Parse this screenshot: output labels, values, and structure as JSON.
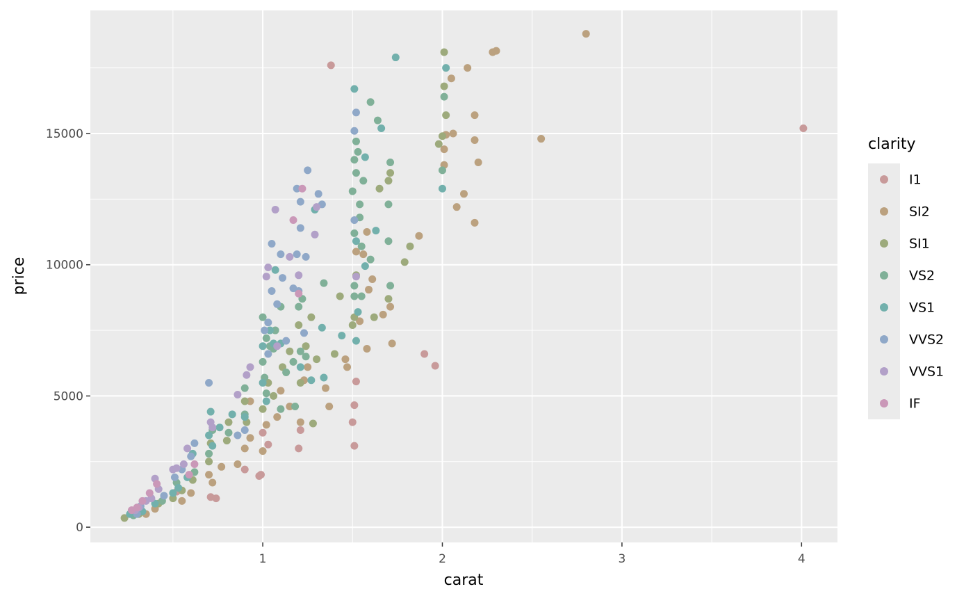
{
  "chart_data": {
    "type": "scatter",
    "x_label": "carat",
    "y_label": "price",
    "legend_title": "clarity",
    "xlim": [
      0.04,
      4.2
    ],
    "ylim": [
      -580,
      19690
    ],
    "xticks": [
      1,
      2,
      3,
      4
    ],
    "yticks": [
      0,
      5000,
      10000,
      15000
    ],
    "x_minor_grid": [
      0.5,
      1.5,
      2.5,
      3.5
    ],
    "y_minor_grid": [
      2500,
      7500,
      12500,
      17500
    ],
    "grid": true,
    "legend": "right",
    "series": [
      {
        "name": "I1",
        "color": "#c89a9a",
        "x": [
          1.38,
          4.01,
          1.96,
          1.9,
          1.51,
          1.5,
          1.51,
          1.2,
          1.21,
          1.03,
          0.99,
          0.98,
          0.9,
          0.74,
          0.71,
          1.0,
          1.52,
          0.52
        ],
        "values": [
          17600,
          15200,
          6150,
          6600,
          4650,
          4000,
          3100,
          3000,
          3700,
          3150,
          2000,
          1950,
          2200,
          1100,
          1150,
          3600,
          5550,
          1350
        ]
      },
      {
        "name": "SI2",
        "color": "#bba17f",
        "x": [
          2.8,
          2.28,
          2.3,
          2.14,
          2.05,
          2.02,
          2.06,
          2.18,
          2.55,
          2.18,
          2.01,
          2.2,
          2.01,
          2.12,
          2.08,
          2.18,
          1.87,
          1.58,
          1.52,
          1.56,
          1.59,
          1.61,
          1.71,
          1.67,
          1.54,
          1.46,
          1.47,
          1.58,
          1.72,
          1.35,
          1.37,
          1.25,
          1.21,
          1.08,
          1.02,
          1.0,
          0.9,
          0.93,
          0.77,
          0.72,
          0.7,
          0.6,
          0.55,
          0.4,
          0.35,
          1.1,
          1.15,
          1.23,
          0.86,
          0.93
        ],
        "values": [
          18800,
          18100,
          18150,
          17500,
          17100,
          14950,
          15000,
          15700,
          14800,
          14750,
          14400,
          13900,
          13800,
          12700,
          12200,
          11600,
          11100,
          11250,
          10500,
          10400,
          9050,
          9450,
          8400,
          8100,
          7850,
          6400,
          6100,
          6800,
          7000,
          5300,
          4600,
          6100,
          4000,
          4200,
          3900,
          2900,
          3000,
          3400,
          2300,
          1700,
          2000,
          1300,
          1000,
          700,
          500,
          5200,
          4600,
          5600,
          2400,
          4800
        ]
      },
      {
        "name": "SI1",
        "color": "#9daa7c",
        "x": [
          2.01,
          2.01,
          2.02,
          2.0,
          1.98,
          1.82,
          1.79,
          1.7,
          1.62,
          1.71,
          1.7,
          1.65,
          1.52,
          1.51,
          1.43,
          1.5,
          1.4,
          1.27,
          1.24,
          1.2,
          1.21,
          1.11,
          1.06,
          1.03,
          1.0,
          0.91,
          0.9,
          0.81,
          0.8,
          0.71,
          0.7,
          0.61,
          0.55,
          0.5,
          0.42,
          0.31,
          0.23,
          1.28,
          1.15,
          1.3
        ],
        "values": [
          18100,
          16800,
          15700,
          14900,
          14600,
          10700,
          10100,
          8700,
          8000,
          13500,
          13200,
          12900,
          9600,
          8000,
          8800,
          7700,
          6600,
          8000,
          6900,
          7700,
          5500,
          6100,
          5000,
          5500,
          4500,
          4000,
          4800,
          4000,
          3300,
          3200,
          2500,
          1800,
          1400,
          1100,
          900,
          500,
          350,
          3950,
          6700,
          6400
        ]
      },
      {
        "name": "VS2",
        "color": "#80b098",
        "x": [
          2.01,
          2.0,
          1.6,
          1.64,
          1.52,
          1.53,
          1.51,
          1.52,
          1.56,
          1.71,
          1.7,
          1.5,
          1.54,
          1.54,
          1.51,
          1.55,
          1.6,
          1.7,
          1.71,
          1.51,
          1.34,
          1.51,
          1.55,
          1.22,
          1.2,
          1.1,
          1.0,
          1.02,
          1.06,
          1.0,
          1.01,
          1.02,
          1.1,
          1.18,
          0.9,
          0.9,
          0.81,
          0.72,
          0.7,
          0.62,
          0.52,
          0.44,
          0.32,
          0.28,
          1.13,
          1.21,
          1.24,
          1.07,
          1.17,
          1.04
        ],
        "values": [
          16400,
          13600,
          16200,
          15500,
          14700,
          14300,
          14000,
          13500,
          13200,
          13900,
          12300,
          12800,
          12300,
          11800,
          11200,
          10700,
          10200,
          10900,
          9200,
          9200,
          9300,
          8800,
          8800,
          8700,
          8400,
          8400,
          8000,
          7200,
          6800,
          6300,
          5700,
          5100,
          4500,
          4600,
          5300,
          4300,
          3600,
          3700,
          2800,
          2100,
          1700,
          1000,
          600,
          450,
          5900,
          6700,
          6500,
          7500,
          6300,
          6900
        ]
      },
      {
        "name": "VS1",
        "color": "#72b0ac",
        "x": [
          1.74,
          2.02,
          1.51,
          1.57,
          1.66,
          2.0,
          1.63,
          1.52,
          1.57,
          1.53,
          1.44,
          1.52,
          1.29,
          1.33,
          1.21,
          1.1,
          1.07,
          1.06,
          1.04,
          1.0,
          1.0,
          1.02,
          0.9,
          0.83,
          0.71,
          0.7,
          0.72,
          0.76,
          0.61,
          0.58,
          0.53,
          0.5,
          0.4,
          0.33,
          0.26,
          1.27,
          1.34
        ],
        "values": [
          17900,
          17500,
          16700,
          14100,
          15200,
          12900,
          11300,
          10900,
          9950,
          8200,
          7300,
          7100,
          12100,
          7600,
          6100,
          7000,
          9800,
          7000,
          7500,
          6900,
          5500,
          4800,
          4200,
          4300,
          4400,
          3500,
          3100,
          3800,
          2800,
          1900,
          1500,
          1300,
          900,
          600,
          500,
          5600,
          5700
        ]
      },
      {
        "name": "VVS2",
        "color": "#8fa8c8",
        "x": [
          1.52,
          1.51,
          1.25,
          1.19,
          1.31,
          1.21,
          1.33,
          1.51,
          1.21,
          1.05,
          1.1,
          1.19,
          1.24,
          1.11,
          1.05,
          1.17,
          1.2,
          1.08,
          1.01,
          1.23,
          0.7,
          0.9,
          0.86,
          0.62,
          0.6,
          0.55,
          0.51,
          0.45,
          0.32,
          0.3,
          1.03,
          1.13,
          1.03
        ],
        "values": [
          15800,
          15100,
          13600,
          12900,
          12700,
          12400,
          12300,
          11700,
          11400,
          10800,
          10400,
          10400,
          10300,
          9500,
          9000,
          9100,
          9000,
          8500,
          7500,
          7400,
          5500,
          3700,
          3500,
          3200,
          2700,
          2200,
          1900,
          1200,
          800,
          500,
          6600,
          7100,
          7800
        ]
      },
      {
        "name": "VVS1",
        "color": "#b2a0c8",
        "x": [
          1.3,
          1.29,
          1.07,
          1.03,
          1.02,
          1.2,
          1.52,
          1.08,
          0.93,
          0.91,
          0.86,
          0.71,
          0.72,
          0.58,
          0.56,
          0.52,
          0.5,
          0.4,
          0.42,
          0.38,
          0.31,
          0.29,
          0.35,
          1.15
        ],
        "values": [
          12200,
          11150,
          12100,
          9900,
          9550,
          9600,
          9550,
          6900,
          6100,
          5800,
          5050,
          4000,
          3800,
          3000,
          2400,
          2250,
          2200,
          1850,
          1450,
          1100,
          750,
          650,
          1000,
          10300
        ]
      },
      {
        "name": "IF",
        "color": "#ca98b8",
        "x": [
          1.22,
          1.17,
          1.2,
          0.62,
          0.59,
          0.41,
          0.37,
          0.33,
          0.3,
          0.27
        ],
        "values": [
          12900,
          11700,
          8900,
          2400,
          2000,
          1650,
          1300,
          1000,
          750,
          650
        ]
      }
    ]
  }
}
